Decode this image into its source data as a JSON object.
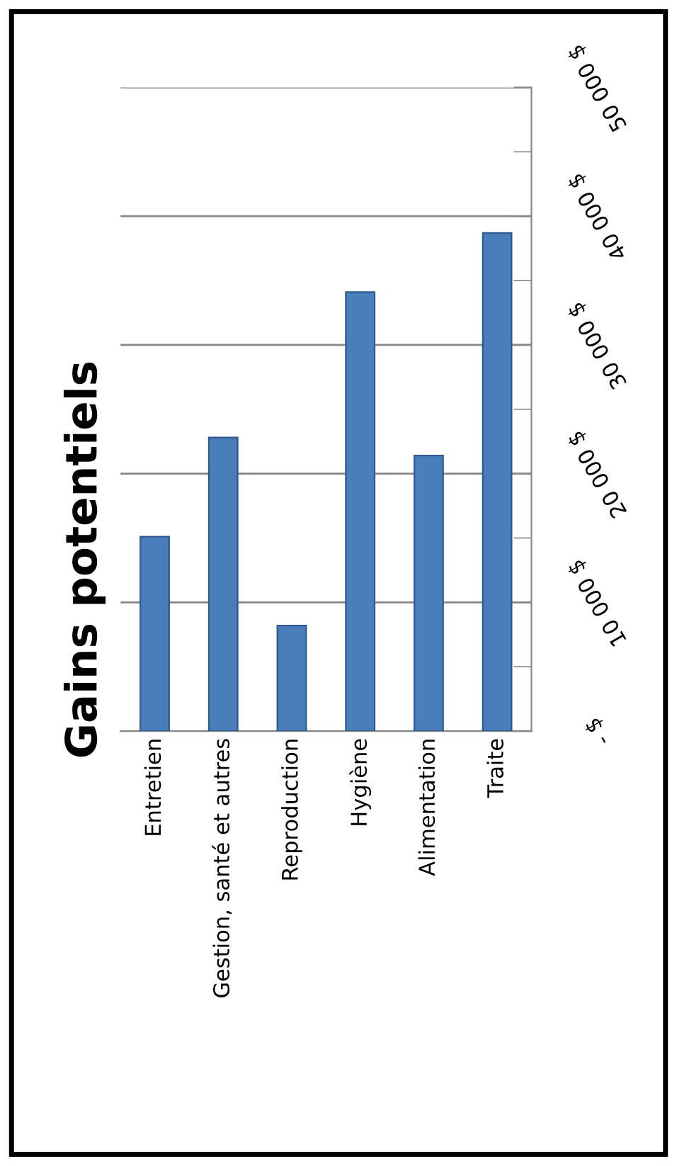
{
  "chart_data": {
    "type": "bar",
    "title": "Gains potentiels",
    "categories": [
      "Entretien",
      "Gestion, santé et autres",
      "Reproduction",
      "Hygiène",
      "Alimentation",
      "Traite"
    ],
    "values": [
      15100,
      22800,
      8200,
      34100,
      21400,
      38700
    ],
    "color": "#4a7ebb",
    "ylim": [
      0,
      50000
    ],
    "yticks": [
      {
        "value": 0,
        "label": "- $"
      },
      {
        "value": 5000,
        "label": null
      },
      {
        "value": 10000,
        "label": "10 000 $"
      },
      {
        "value": 15000,
        "label": null
      },
      {
        "value": 20000,
        "label": "20 000 $"
      },
      {
        "value": 25000,
        "label": null
      },
      {
        "value": 30000,
        "label": "30 000 $"
      },
      {
        "value": 35000,
        "label": null
      },
      {
        "value": 40000,
        "label": "40 000 $"
      },
      {
        "value": 45000,
        "label": null
      },
      {
        "value": 50000,
        "label": "50 000 $"
      }
    ],
    "grid": "y"
  }
}
